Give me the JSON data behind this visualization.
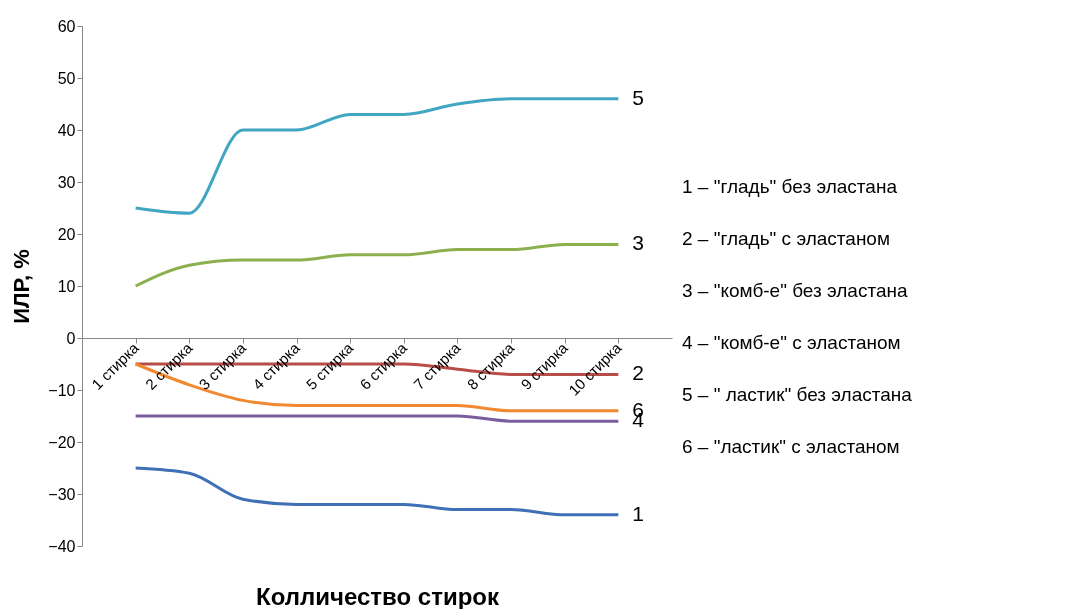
{
  "chart_data": {
    "type": "line",
    "xlabel": "Колличество  стирок",
    "ylabel": "ИЛР, %",
    "categories": [
      "1 стирка",
      "2 стирка",
      "3 стирка",
      "4 стирка",
      "5 стирка",
      "6 стирка",
      "7 стирка",
      "8 стирка",
      "9 стирка",
      "10 стирка"
    ],
    "series": [
      {
        "name": "1",
        "color": "#3f6fb5",
        "values": [
          -25,
          -26,
          -31,
          -32,
          -32,
          -32,
          -33,
          -33,
          -34,
          -34
        ]
      },
      {
        "name": "2",
        "color": "#b84c48",
        "values": [
          -5,
          -5,
          -5,
          -5,
          -5,
          -5,
          -6,
          -7,
          -7,
          -7
        ]
      },
      {
        "name": "3",
        "color": "#8db04f",
        "values": [
          10,
          14,
          15,
          15,
          16,
          16,
          17,
          17,
          18,
          18
        ]
      },
      {
        "name": "4",
        "color": "#7b5c9e",
        "values": [
          -15,
          -15,
          -15,
          -15,
          -15,
          -15,
          -15,
          -16,
          -16,
          -16
        ]
      },
      {
        "name": "5",
        "color": "#40a6c2",
        "values": [
          25,
          24,
          40,
          40,
          43,
          43,
          45,
          46,
          46,
          46
        ]
      },
      {
        "name": "6",
        "color": "#f0892f",
        "values": [
          -5,
          -9,
          -12,
          -13,
          -13,
          -13,
          -13,
          -14,
          -14,
          -14
        ]
      }
    ],
    "ylim": [
      -40,
      60
    ],
    "yticks": [
      -40,
      -30,
      -20,
      -10,
      0,
      10,
      20,
      30,
      40,
      50,
      60
    ],
    "grid": false,
    "legend": false,
    "marker": "none",
    "line_style": "solid",
    "annotations": [
      "1 –   \"гладь\" без эластана",
      "2 –   \"гладь\" с эластаном",
      "3 –   \"комб-е\" без эластана",
      "4 –   \"комб-е\" с эластаном",
      "5 –   \" ластик\" без эластана",
      "6 –   \"ластик\" с эластаном"
    ]
  }
}
